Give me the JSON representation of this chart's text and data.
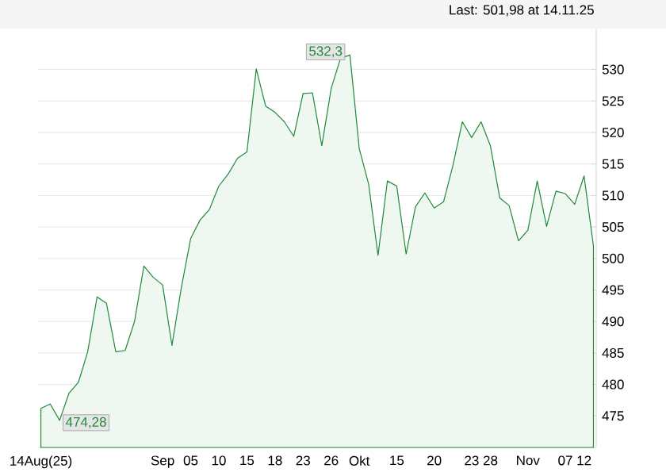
{
  "chart_data": {
    "type": "area",
    "categories": [
      "14Aug(25)",
      null,
      null,
      null,
      null,
      null,
      null,
      null,
      null,
      null,
      null,
      null,
      null,
      "Sep",
      null,
      null,
      "05",
      null,
      null,
      "10",
      null,
      null,
      "15",
      null,
      null,
      "18",
      null,
      null,
      "23",
      null,
      null,
      "26",
      null,
      null,
      "Okt",
      null,
      null,
      null,
      "15",
      null,
      null,
      null,
      "20",
      null,
      null,
      null,
      "23",
      null,
      "28",
      null,
      null,
      null,
      "Nov",
      null,
      null,
      null,
      "07",
      null,
      "12",
      null
    ],
    "series": [
      {
        "color": "#1f8a3c",
        "values": [
          476.2,
          476.9,
          474.3,
          478.6,
          480.3,
          485.2,
          493.9,
          492.9,
          485.2,
          485.4,
          490.0,
          498.8,
          497.0,
          495.8,
          486.2,
          495.4,
          503.2,
          506.1,
          507.8,
          511.5,
          513.4,
          515.9,
          516.9,
          530.1,
          524.2,
          523.2,
          521.7,
          519.4,
          526.2,
          526.3,
          517.9,
          527.0,
          531.8,
          532.3,
          517.4,
          511.8,
          500.5,
          512.3,
          511.5,
          500.7,
          508.2,
          510.4,
          508.0,
          509.0,
          514.8,
          521.7,
          519.2,
          521.7,
          517.9,
          509.6,
          508.4,
          502.8,
          504.5,
          512.3,
          505.1,
          510.7,
          510.3,
          508.6,
          513.1,
          502.0
        ]
      }
    ],
    "ylim": [
      470,
      536.5
    ],
    "yticks": [
      475,
      480,
      485,
      490,
      495,
      500,
      505,
      510,
      515,
      520,
      525,
      530
    ],
    "grid": "y",
    "annotations": [
      "Last: 501,98 at 14.11.25",
      {
        "text": "532,3",
        "y": 532.3
      },
      {
        "text": "474,28",
        "y": 474.3
      }
    ]
  }
}
